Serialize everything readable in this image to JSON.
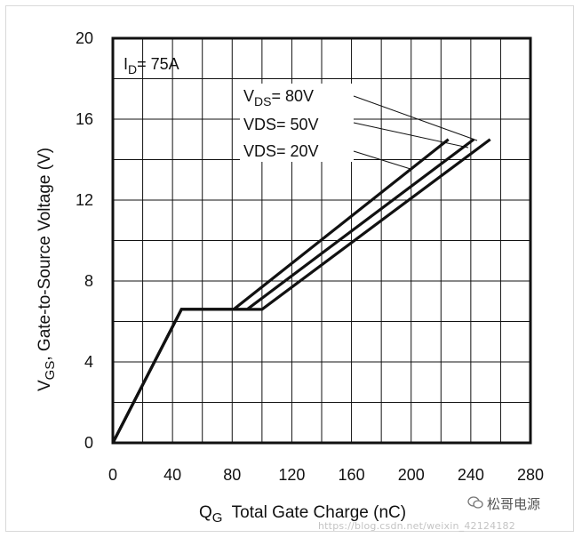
{
  "chart_data": {
    "type": "line",
    "title": "",
    "xlabel": {
      "main": "Q",
      "sub": "G",
      "rest": "  Total Gate Charge (nC)"
    },
    "ylabel": {
      "main": "V",
      "sub": "GS",
      "rest": ", Gate-to-Source Voltage (V)"
    },
    "xlim": [
      0,
      280
    ],
    "ylim": [
      0,
      20
    ],
    "xticks": [
      "0",
      "40",
      "80",
      "120",
      "160",
      "200",
      "240",
      "280"
    ],
    "yticks": [
      "0",
      "4",
      "8",
      "12",
      "16",
      "20"
    ],
    "grid": true,
    "annotation": {
      "main": "I",
      "sub": "D",
      "rest": "= 75A"
    },
    "series": [
      {
        "name": "VDS= 80V",
        "label_main": "V",
        "label_sub": "DS",
        "label_rest": "= 80V",
        "x": [
          0,
          46,
          100,
          253
        ],
        "y": [
          0,
          6.6,
          6.6,
          15.0
        ]
      },
      {
        "name": "VDS= 50V",
        "label_main": "VDS= 50V",
        "label_sub": "",
        "label_rest": "",
        "x": [
          0,
          46,
          90,
          242
        ],
        "y": [
          0,
          6.6,
          6.6,
          15.0
        ]
      },
      {
        "name": "VDS= 20V",
        "label_main": "VDS= 20V",
        "label_sub": "",
        "label_rest": "",
        "x": [
          0,
          46,
          81,
          225
        ],
        "y": [
          0,
          6.6,
          6.6,
          15.0
        ]
      }
    ]
  },
  "watermark": {
    "brand": "松哥电源",
    "url": "https://blog.csdn.net/weixin_42124182"
  }
}
